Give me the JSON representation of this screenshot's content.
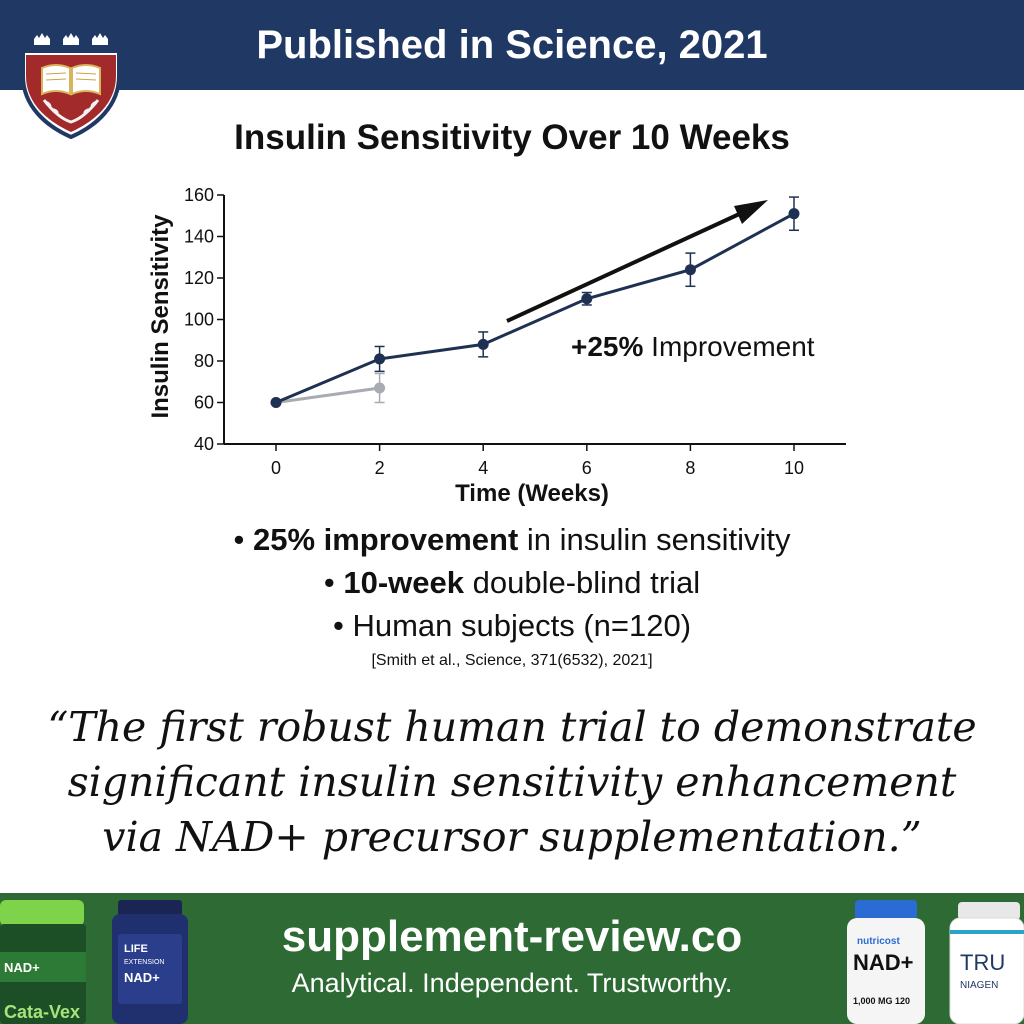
{
  "header": {
    "title": "Published in Science, 2021"
  },
  "chart_data": {
    "type": "line",
    "title": "Insulin Sensitivity Over 10 Weeks",
    "xlabel": "Time (Weeks)",
    "ylabel": "Insulin Sensitivity",
    "xlim": [
      0,
      10
    ],
    "ylim": [
      40,
      160
    ],
    "xticks": [
      0,
      2,
      4,
      6,
      8,
      10
    ],
    "yticks": [
      40,
      60,
      80,
      100,
      120,
      140,
      160
    ],
    "grid": false,
    "series": [
      {
        "color": "#1f3152",
        "x": [
          0,
          2,
          4,
          6,
          8,
          10
        ],
        "y": [
          60,
          81,
          88,
          110,
          124,
          151
        ],
        "error": [
          0,
          6,
          6,
          3,
          8,
          8
        ]
      },
      {
        "color": "#a8acb2",
        "x": [
          0,
          2
        ],
        "y": [
          60,
          67
        ],
        "error": [
          0,
          7
        ]
      }
    ],
    "annotation": {
      "bold": "+25%",
      "text": " Improvement"
    }
  },
  "bullets": [
    {
      "bold": "25% improvement",
      "text": " in insulin sensitivity"
    },
    {
      "bold": "10-week",
      "text": " double-blind trial"
    },
    {
      "bold": "",
      "text": "Human subjects (n=120)"
    }
  ],
  "bullet_marker": "•",
  "citation": "[Smith et al., Science, 371(6532), 2021]",
  "quote": "“The first robust human trial to demonstrate significant insulin sensitivity enhancement via NAD+ precursor supplementation.”",
  "footer": {
    "url": "supplement-review.co",
    "tagline": "Analytical. Independent. Trustworthy."
  },
  "products": {
    "left_green": {
      "line1": "NAD+",
      "brand": "Cata-Vex"
    },
    "left_blue": {
      "line1": "LIFE",
      "line2": "EXTENSION",
      "line3": "NAD+"
    },
    "right_white": {
      "brand": "nutricost",
      "name": "NAD+",
      "dose": "1,000 MG",
      "count": "120"
    },
    "right_tru": {
      "line1": "TRU",
      "line2": "NIAGEN"
    }
  },
  "colors": {
    "header_bg": "#1f3864",
    "footer_bg": "#2e6b34",
    "crest_red": "#a32a2a"
  }
}
